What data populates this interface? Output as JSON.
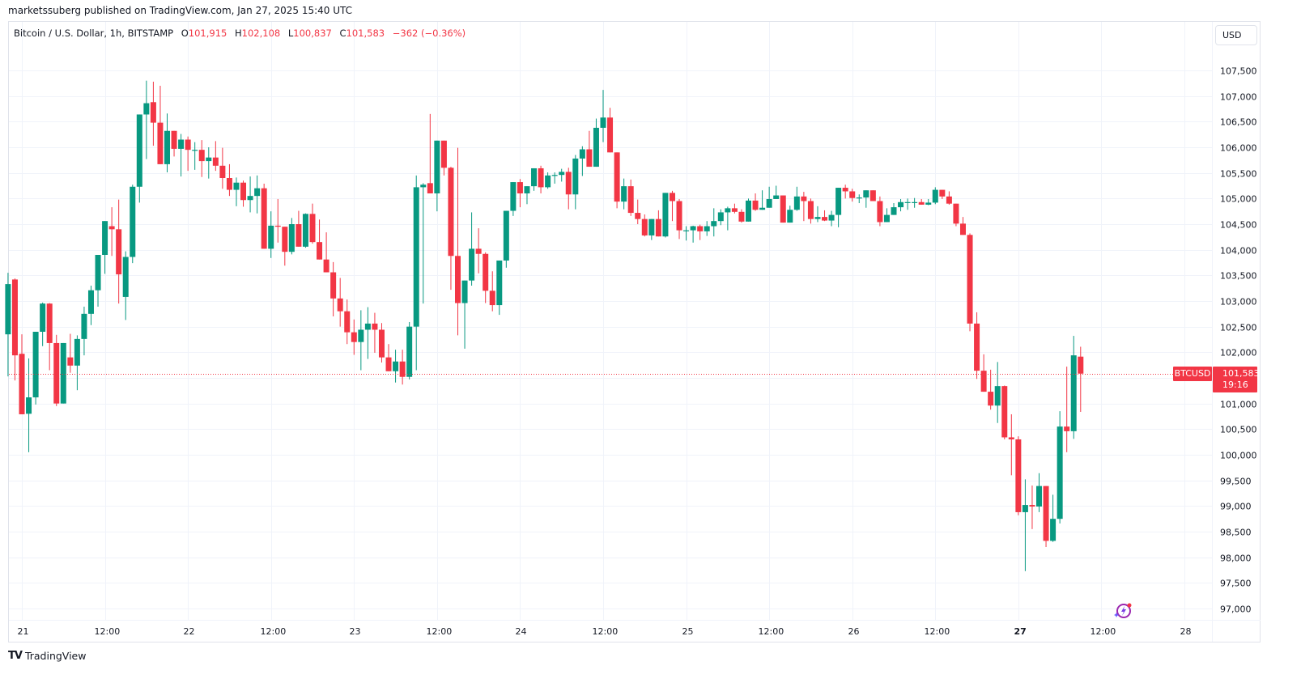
{
  "header": {
    "published": "marketssuberg published on TradingView.com, Jan 27, 2025 15:40 UTC"
  },
  "legend": {
    "symbol_desc": "Bitcoin / U.S. Dollar, 1h, BITSTAMP",
    "o_label": "O",
    "o_value": "101,915",
    "h_label": "H",
    "h_value": "102,108",
    "l_label": "L",
    "l_value": "100,837",
    "c_label": "C",
    "c_value": "101,583",
    "change": "−362 (−0.36%)"
  },
  "currency_button": "USD",
  "price_tag": {
    "symbol": "BTCUSD",
    "price": "101,583",
    "countdown": "19:16"
  },
  "footer": {
    "logo_glyph": "TV",
    "brand": "TradingView"
  },
  "colors": {
    "up": "#089981",
    "down": "#f23645",
    "grid": "#f0f3fa",
    "border": "#e0e3eb",
    "text": "#131722"
  },
  "chart_data": {
    "type": "candlestick",
    "title": "Bitcoin / U.S. Dollar, 1h, BITSTAMP",
    "xlabel": "",
    "ylabel": "USD",
    "ylim": [
      96800,
      107900
    ],
    "grid": true,
    "y_ticks": [
      107500,
      107000,
      106500,
      106000,
      105500,
      105000,
      104500,
      104000,
      103500,
      103000,
      102500,
      102000,
      101500,
      101000,
      100500,
      100000,
      99500,
      99000,
      98500,
      98000,
      97500,
      97000
    ],
    "y_tick_labels": [
      "107,500",
      "107,000",
      "106,500",
      "106,000",
      "105,500",
      "105,000",
      "104,500",
      "104,000",
      "103,500",
      "103,000",
      "102,500",
      "102,000",
      "101,500",
      "101,000",
      "100,500",
      "100,000",
      "99,500",
      "99,000",
      "98,500",
      "98,000",
      "97,500",
      "97,000"
    ],
    "x_ticks": [
      {
        "label": "21",
        "hour": 0,
        "bold": false
      },
      {
        "label": "12:00",
        "hour": 12,
        "bold": false
      },
      {
        "label": "22",
        "hour": 24,
        "bold": false
      },
      {
        "label": "12:00",
        "hour": 36,
        "bold": false
      },
      {
        "label": "23",
        "hour": 48,
        "bold": false
      },
      {
        "label": "12:00",
        "hour": 60,
        "bold": false
      },
      {
        "label": "24",
        "hour": 72,
        "bold": false
      },
      {
        "label": "12:00",
        "hour": 84,
        "bold": false
      },
      {
        "label": "25",
        "hour": 96,
        "bold": false
      },
      {
        "label": "12:00",
        "hour": 108,
        "bold": false
      },
      {
        "label": "26",
        "hour": 120,
        "bold": false
      },
      {
        "label": "12:00",
        "hour": 132,
        "bold": false
      },
      {
        "label": "27",
        "hour": 144,
        "bold": true
      },
      {
        "label": "12:00",
        "hour": 156,
        "bold": false
      },
      {
        "label": "28",
        "hour": 168,
        "bold": false
      }
    ],
    "last_price": 101583,
    "first_hour": -2,
    "candles_ohlc": [
      [
        102350,
        103550,
        101530,
        103330
      ],
      [
        103420,
        103440,
        101450,
        101940
      ],
      [
        101970,
        102350,
        100800,
        100790
      ],
      [
        100800,
        101880,
        100050,
        101120
      ],
      [
        101120,
        102380,
        100980,
        102400
      ],
      [
        102400,
        102970,
        102120,
        102950
      ],
      [
        102950,
        102960,
        101650,
        102180
      ],
      [
        102180,
        102340,
        100950,
        101000
      ],
      [
        101000,
        102180,
        101130,
        102180
      ],
      [
        101900,
        102360,
        101600,
        101740
      ],
      [
        101740,
        102330,
        101260,
        102260
      ],
      [
        102260,
        102890,
        101940,
        102750
      ],
      [
        102750,
        103300,
        102530,
        103210
      ],
      [
        103210,
        103660,
        102890,
        103900
      ],
      [
        103900,
        104550,
        103530,
        104560
      ],
      [
        104460,
        104830,
        103880,
        104400
      ],
      [
        104400,
        104980,
        102950,
        103520
      ],
      [
        103080,
        103970,
        102630,
        103860
      ],
      [
        103860,
        105270,
        103740,
        105230
      ],
      [
        105230,
        105210,
        104920,
        106640
      ],
      [
        106640,
        107300,
        105770,
        106860
      ],
      [
        106880,
        107280,
        106030,
        106480
      ],
      [
        106480,
        107200,
        105850,
        105670
      ],
      [
        105670,
        106660,
        105510,
        106320
      ],
      [
        106320,
        106300,
        105820,
        105970
      ],
      [
        105970,
        106260,
        105430,
        106150
      ],
      [
        106150,
        106210,
        105540,
        105950
      ],
      [
        105950,
        106100,
        105560,
        105950
      ],
      [
        105950,
        106140,
        105420,
        105730
      ],
      [
        105730,
        106000,
        105390,
        105800
      ],
      [
        105800,
        106120,
        105540,
        105640
      ],
      [
        105640,
        105990,
        105190,
        105400
      ],
      [
        105400,
        105670,
        105050,
        105170
      ],
      [
        105170,
        105410,
        104850,
        105310
      ],
      [
        105310,
        105350,
        104840,
        104970
      ],
      [
        104970,
        105430,
        104730,
        105050
      ],
      [
        105050,
        105450,
        104710,
        105200
      ],
      [
        105200,
        105290,
        104330,
        104020
      ],
      [
        104020,
        104750,
        103840,
        104470
      ],
      [
        104470,
        104990,
        104140,
        104450
      ],
      [
        104450,
        104360,
        103690,
        103960
      ],
      [
        103960,
        104620,
        103910,
        104500
      ],
      [
        104500,
        104760,
        104090,
        104060
      ],
      [
        104060,
        104710,
        104040,
        104700
      ],
      [
        104700,
        104900,
        104120,
        104150
      ],
      [
        104150,
        104590,
        103960,
        103810
      ],
      [
        103810,
        104340,
        103570,
        103560
      ],
      [
        103560,
        103760,
        102700,
        103050
      ],
      [
        103050,
        103450,
        102500,
        102800
      ],
      [
        102800,
        103030,
        102160,
        102390
      ],
      [
        102390,
        102640,
        101950,
        102200
      ],
      [
        102200,
        102820,
        101650,
        102440
      ],
      [
        102440,
        102880,
        101870,
        102560
      ],
      [
        102560,
        102770,
        101990,
        102440
      ],
      [
        102440,
        102570,
        101800,
        101900
      ],
      [
        101900,
        102160,
        101670,
        101630
      ],
      [
        101630,
        102050,
        101410,
        101820
      ],
      [
        101820,
        102050,
        101370,
        101520
      ],
      [
        101520,
        102590,
        101470,
        102500
      ],
      [
        102500,
        105450,
        101650,
        105220
      ],
      [
        105220,
        105300,
        102950,
        105270
      ],
      [
        105300,
        106650,
        105220,
        105100
      ],
      [
        105100,
        105970,
        104750,
        106130
      ],
      [
        106130,
        105950,
        105450,
        105600
      ],
      [
        105600,
        105620,
        103220,
        103880
      ],
      [
        103880,
        105990,
        102330,
        102960
      ],
      [
        102960,
        103150,
        102070,
        103400
      ],
      [
        103400,
        104730,
        103300,
        104020
      ],
      [
        104020,
        104420,
        103540,
        103920
      ],
      [
        103920,
        103950,
        102960,
        103200
      ],
      [
        103200,
        103580,
        102800,
        102920
      ],
      [
        102920,
        103320,
        102730,
        103790
      ],
      [
        103790,
        104320,
        103650,
        104760
      ],
      [
        104760,
        105140,
        104660,
        105320
      ],
      [
        105320,
        105380,
        104830,
        105100
      ],
      [
        105100,
        105240,
        104890,
        105240
      ],
      [
        105240,
        105540,
        105150,
        105590
      ],
      [
        105590,
        105640,
        105100,
        105220
      ],
      [
        105220,
        105510,
        105190,
        105450
      ],
      [
        105450,
        105510,
        105290,
        105460
      ],
      [
        105460,
        105580,
        105330,
        105520
      ],
      [
        105520,
        105600,
        104790,
        105080
      ],
      [
        105080,
        105850,
        104790,
        105780
      ],
      [
        105780,
        106020,
        105440,
        105960
      ],
      [
        105960,
        106320,
        105640,
        105620
      ],
      [
        105620,
        106560,
        105620,
        106380
      ],
      [
        106380,
        107120,
        106100,
        106580
      ],
      [
        106580,
        106770,
        106120,
        105900
      ],
      [
        105900,
        105830,
        104810,
        104940
      ],
      [
        104940,
        105390,
        104790,
        105240
      ],
      [
        105240,
        105370,
        104660,
        104720
      ],
      [
        104720,
        104980,
        104500,
        104600
      ],
      [
        104600,
        104690,
        104260,
        104280
      ],
      [
        104280,
        104560,
        104190,
        104600
      ],
      [
        104600,
        104770,
        104420,
        104260
      ],
      [
        104260,
        105060,
        104240,
        105110
      ],
      [
        105110,
        105150,
        104560,
        104950
      ],
      [
        104950,
        104990,
        104210,
        104380
      ],
      [
        104380,
        104460,
        104180,
        104380
      ],
      [
        104380,
        104470,
        104140,
        104460
      ],
      [
        104460,
        104490,
        104190,
        104360
      ],
      [
        104360,
        104560,
        104270,
        104460
      ],
      [
        104460,
        104810,
        104260,
        104560
      ],
      [
        104560,
        104790,
        104480,
        104730
      ],
      [
        104730,
        104840,
        104380,
        104810
      ],
      [
        104810,
        104900,
        104710,
        104740
      ],
      [
        104740,
        104790,
        104530,
        104550
      ],
      [
        104550,
        105000,
        104620,
        104960
      ],
      [
        104960,
        105100,
        104760,
        104780
      ],
      [
        104780,
        105160,
        104830,
        104820
      ],
      [
        104820,
        105230,
        104920,
        104990
      ],
      [
        104990,
        105250,
        105080,
        105060
      ],
      [
        105060,
        105000,
        104600,
        104530
      ],
      [
        104530,
        104860,
        104550,
        104780
      ],
      [
        104780,
        105230,
        104760,
        105040
      ],
      [
        105040,
        105130,
        104560,
        104950
      ],
      [
        104950,
        105000,
        104510,
        104600
      ],
      [
        104600,
        104850,
        104540,
        104640
      ],
      [
        104640,
        104770,
        104560,
        104570
      ],
      [
        104570,
        104760,
        104460,
        104680
      ],
      [
        104680,
        105140,
        104440,
        105210
      ],
      [
        105210,
        105270,
        105000,
        105140
      ],
      [
        105140,
        105190,
        104940,
        105010
      ],
      [
        105010,
        105080,
        104910,
        105020
      ],
      [
        105020,
        105000,
        104820,
        105160
      ],
      [
        105160,
        105130,
        104970,
        104950
      ],
      [
        104950,
        105040,
        104460,
        104540
      ],
      [
        104540,
        104810,
        104600,
        104680
      ],
      [
        104680,
        104910,
        104700,
        104830
      ],
      [
        104830,
        104990,
        104750,
        104930
      ],
      [
        104930,
        105000,
        104780,
        104930
      ],
      [
        104930,
        105010,
        104820,
        104930
      ],
      [
        104930,
        104990,
        104900,
        104880
      ],
      [
        104880,
        104990,
        104870,
        104920
      ],
      [
        104920,
        105220,
        104890,
        105170
      ],
      [
        105170,
        105110,
        104990,
        105040
      ],
      [
        105040,
        105140,
        104880,
        104900
      ],
      [
        104900,
        104900,
        104460,
        104510
      ],
      [
        104510,
        104640,
        104300,
        104290
      ],
      [
        104290,
        104320,
        102410,
        102560
      ],
      [
        102560,
        102780,
        101480,
        101640
      ],
      [
        101640,
        101960,
        101230,
        101230
      ],
      [
        101230,
        101660,
        100880,
        100960
      ],
      [
        100960,
        101810,
        100620,
        101340
      ],
      [
        101340,
        101350,
        100300,
        100340
      ],
      [
        100340,
        100790,
        99600,
        100300
      ],
      [
        100300,
        100360,
        98820,
        98880
      ],
      [
        98880,
        99520,
        97730,
        99020
      ],
      [
        99020,
        99400,
        98550,
        98990
      ],
      [
        98990,
        99640,
        98880,
        99390
      ],
      [
        99390,
        99390,
        98200,
        98320
      ],
      [
        98320,
        99220,
        98300,
        98750
      ],
      [
        98750,
        100850,
        98660,
        100550
      ],
      [
        100550,
        101720,
        100050,
        100460
      ],
      [
        100460,
        102320,
        100310,
        101940
      ],
      [
        101915,
        102108,
        100837,
        101583
      ]
    ]
  }
}
